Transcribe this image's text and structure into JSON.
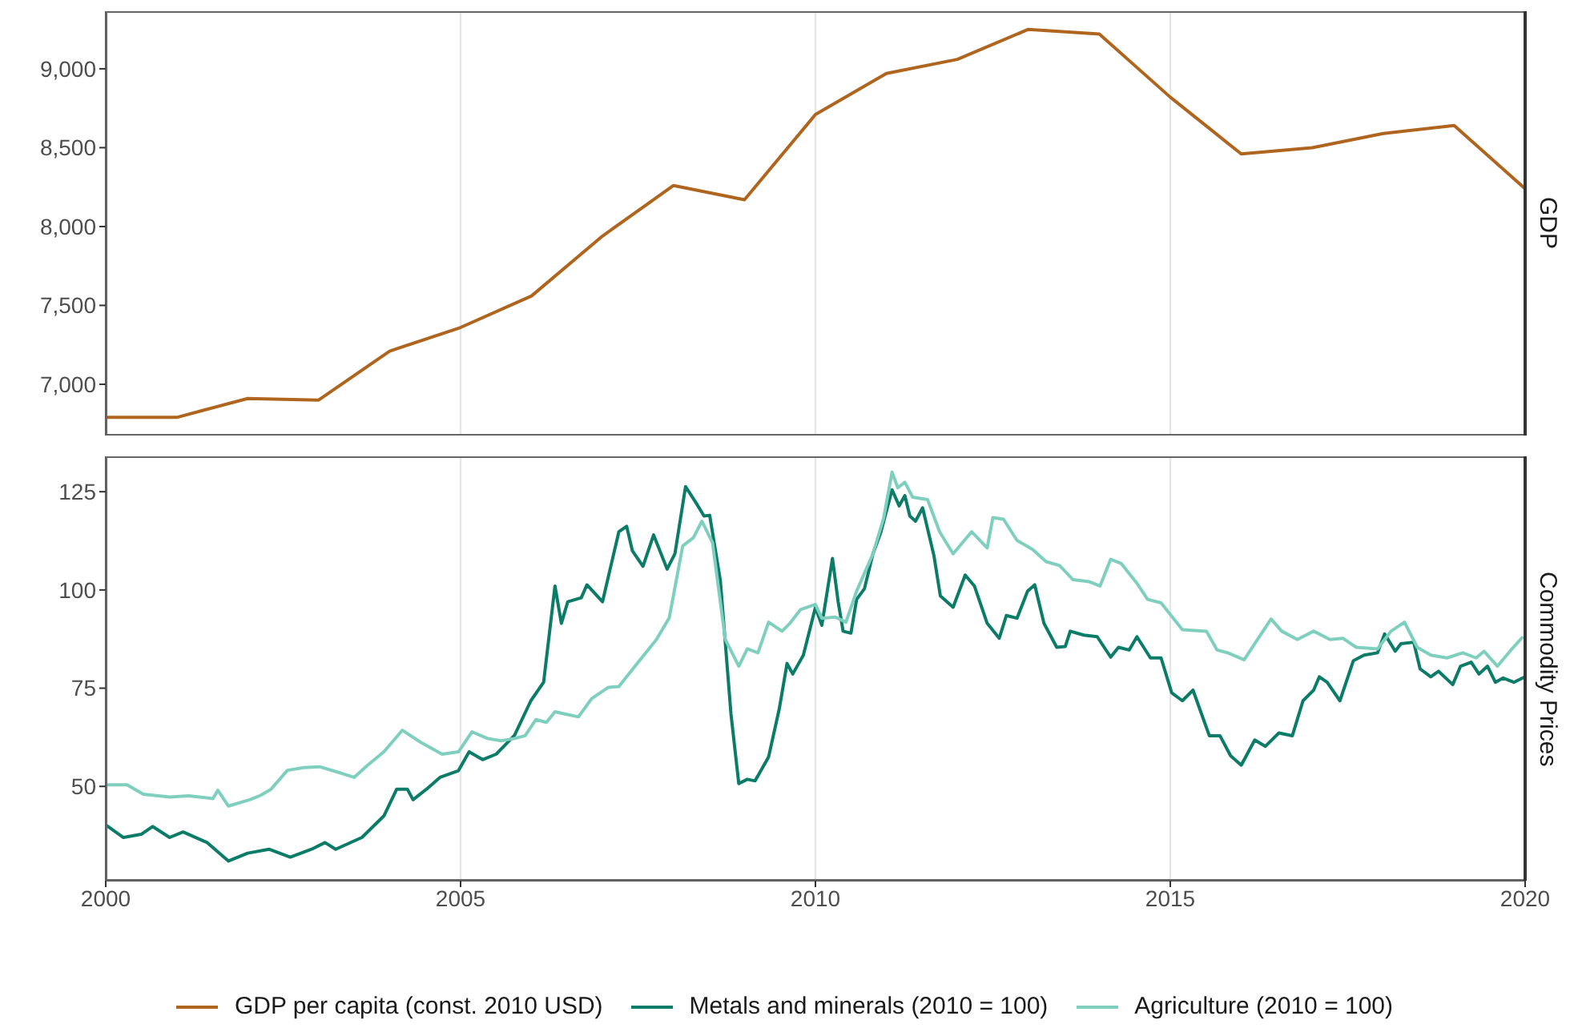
{
  "chart_data": [
    {
      "type": "line",
      "title": "GDP",
      "xlim": [
        2000,
        2020
      ],
      "xticks": [
        2000,
        2005,
        2010,
        2015,
        2020
      ],
      "ylim": [
        6675,
        9365
      ],
      "yticks": [
        {
          "value": 7000,
          "label": "7,000"
        },
        {
          "value": 7500,
          "label": "7,500"
        },
        {
          "value": 8000,
          "label": "8,000"
        },
        {
          "value": 8500,
          "label": "8,500"
        },
        {
          "value": 9000,
          "label": "9,000"
        }
      ],
      "grid": "x",
      "tick_labels": "y",
      "legend": "bottom",
      "series": [
        {
          "name": "GDP per capita (const. 2010 USD)",
          "color": "#b0651f",
          "x": [
            2000,
            2001,
            2002,
            2003,
            2004,
            2005,
            2006,
            2007,
            2008,
            2009,
            2010,
            2011,
            2012,
            2013,
            2014,
            2015,
            2016,
            2017,
            2018,
            2019,
            2020
          ],
          "values": [
            6790,
            6790,
            6910,
            6900,
            7210,
            7360,
            7560,
            7940,
            8260,
            8170,
            8710,
            8970,
            9060,
            9250,
            9220,
            8820,
            8460,
            8500,
            8590,
            8640,
            8240
          ]
        }
      ]
    },
    {
      "type": "line",
      "title": "Commodity Prices",
      "xlim": [
        2000,
        2020
      ],
      "xticks": [
        2000,
        2005,
        2010,
        2015,
        2020
      ],
      "ylim": [
        26,
        134
      ],
      "yticks": [
        50,
        75,
        100,
        125
      ],
      "grid": "x",
      "legend": "bottom",
      "series": [
        {
          "name": "Metals and minerals (2010 = 100)",
          "color": "#0b7c68",
          "x": [
            2000,
            2000.25,
            2000.5,
            2000.66,
            2000.9,
            2001.09,
            2001.43,
            2001.73,
            2002,
            2002.3,
            2002.6,
            2002.9,
            2003.09,
            2003.24,
            2003.61,
            2003.92,
            2004.1,
            2004.25,
            2004.33,
            2004.52,
            2004.71,
            2004.97,
            2005.12,
            2005.31,
            2005.5,
            2005.61,
            2005.76,
            2005.99,
            2006.17,
            2006.33,
            2006.42,
            2006.51,
            2006.7,
            2006.78,
            2007,
            2007.23,
            2007.34,
            2007.42,
            2007.57,
            2007.72,
            2007.91,
            2008.02,
            2008.17,
            2008.32,
            2008.43,
            2008.51,
            2008.66,
            2008.81,
            2008.92,
            2009.04,
            2009.15,
            2009.34,
            2009.49,
            2009.6,
            2009.68,
            2009.83,
            2010,
            2010.09,
            2010.24,
            2010.32,
            2010.39,
            2010.5,
            2010.58,
            2010.69,
            2010.81,
            2010.92,
            2011.08,
            2011.18,
            2011.26,
            2011.33,
            2011.41,
            2011.51,
            2011.67,
            2011.76,
            2011.94,
            2012.11,
            2012.24,
            2012.42,
            2012.59,
            2012.69,
            2012.84,
            2012.99,
            2013.09,
            2013.22,
            2013.4,
            2013.52,
            2013.59,
            2013.78,
            2013.97,
            2014.16,
            2014.27,
            2014.42,
            2014.53,
            2014.72,
            2014.87,
            2015.02,
            2015.17,
            2015.32,
            2015.55,
            2015.7,
            2015.85,
            2016,
            2016.19,
            2016.34,
            2016.53,
            2016.72,
            2016.87,
            2017.02,
            2017.1,
            2017.21,
            2017.39,
            2017.58,
            2017.73,
            2017.92,
            2018.02,
            2018.17,
            2018.25,
            2018.43,
            2018.52,
            2018.67,
            2018.78,
            2018.98,
            2019.09,
            2019.24,
            2019.35,
            2019.47,
            2019.58,
            2019.69,
            2019.84,
            2020
          ],
          "values": [
            40.2,
            37,
            37.8,
            39.8,
            37,
            38.4,
            35.7,
            31,
            33,
            34,
            32,
            34,
            35.7,
            34,
            37,
            42.5,
            49.3,
            49.3,
            46.6,
            49.3,
            52.3,
            54,
            58.8,
            56.8,
            58.2,
            60.2,
            63,
            71.8,
            76.5,
            101,
            91.5,
            97,
            98,
            101.3,
            97,
            114.8,
            116.2,
            110,
            106,
            114,
            105.3,
            109.2,
            126.3,
            122.1,
            118.8,
            119,
            102.4,
            68.4,
            50.7,
            51.8,
            51.4,
            57.5,
            69.7,
            81.3,
            78.6,
            83.4,
            95.6,
            91,
            108,
            97,
            89.5,
            89,
            97.6,
            100.3,
            109.2,
            114.6,
            125.5,
            121.4,
            124,
            118.8,
            117.5,
            120.9,
            108.7,
            98.5,
            95.6,
            103.8,
            101,
            91.5,
            87.7,
            93.5,
            92.8,
            99.7,
            101.3,
            91.5,
            85.4,
            85.6,
            89.5,
            88.5,
            88.1,
            82.9,
            85.4,
            84.7,
            88.1,
            82.7,
            82.7,
            73.8,
            71.8,
            74.5,
            62.9,
            62.9,
            57.8,
            55.4,
            61.8,
            60.2,
            63.6,
            62.9,
            71.8,
            74.5,
            77.9,
            76.5,
            71.8,
            82,
            83.4,
            84,
            88.8,
            84.4,
            86.3,
            86.7,
            79.9,
            77.9,
            79.3,
            75.9,
            80.6,
            81.6,
            78.6,
            80.6,
            76.5,
            77.6,
            76.5,
            77.9
          ]
        },
        {
          "name": "Agriculture (2010 = 100)",
          "color": "#7fcfbf",
          "x": [
            2000,
            2000.3,
            2000.53,
            2000.9,
            2001.17,
            2001.51,
            2001.58,
            2001.73,
            2002.03,
            2002.18,
            2002.33,
            2002.56,
            2002.79,
            2003.01,
            2003.31,
            2003.5,
            2003.69,
            2003.92,
            2004.18,
            2004.44,
            2004.74,
            2004.97,
            2005.16,
            2005.38,
            2005.57,
            2005.76,
            2005.91,
            2006.06,
            2006.21,
            2006.33,
            2006.48,
            2006.66,
            2006.85,
            2007.08,
            2007.23,
            2007.49,
            2007.76,
            2007.94,
            2008.13,
            2008.28,
            2008.4,
            2008.55,
            2008.73,
            2008.92,
            2009.04,
            2009.19,
            2009.34,
            2009.53,
            2009.64,
            2009.79,
            2010,
            2010.09,
            2010.28,
            2010.43,
            2010.58,
            2010.81,
            2010.96,
            2011.08,
            2011.16,
            2011.26,
            2011.37,
            2011.58,
            2011.75,
            2011.94,
            2012.2,
            2012.42,
            2012.5,
            2012.65,
            2012.84,
            2013.06,
            2013.25,
            2013.44,
            2013.63,
            2013.86,
            2014.01,
            2014.16,
            2014.31,
            2014.53,
            2014.68,
            2014.87,
            2015.17,
            2015.51,
            2015.66,
            2015.81,
            2016.04,
            2016.23,
            2016.42,
            2016.57,
            2016.79,
            2017.02,
            2017.25,
            2017.43,
            2017.62,
            2017.92,
            2018.11,
            2018.3,
            2018.48,
            2018.67,
            2018.9,
            2019.12,
            2019.31,
            2019.42,
            2019.61,
            2019.8,
            2019.97
          ],
          "values": [
            50.4,
            50.4,
            48,
            47.3,
            47.6,
            46.9,
            49,
            45,
            46.6,
            47.7,
            49.3,
            54.1,
            54.8,
            55,
            53.4,
            52.3,
            55.4,
            58.8,
            64.3,
            61.2,
            58.2,
            58.8,
            63.9,
            62.2,
            61.6,
            62.2,
            62.9,
            67,
            66.3,
            69,
            68.4,
            67.7,
            72.4,
            75.2,
            75.4,
            81.3,
            87.4,
            92.9,
            111.2,
            113.3,
            117.5,
            112,
            87.4,
            80.6,
            85,
            84,
            91.8,
            89.5,
            91.5,
            95,
            96.3,
            92.8,
            93.1,
            91.8,
            99.7,
            109.2,
            118.2,
            130,
            126,
            127.4,
            123.6,
            123,
            114.8,
            109.2,
            114.8,
            110.7,
            118.4,
            118,
            112.6,
            110.3,
            107.2,
            106.2,
            102.6,
            102.1,
            101,
            107.8,
            106.7,
            101.7,
            97.6,
            96.7,
            89.9,
            89.5,
            84.7,
            84,
            82.2,
            87.4,
            92.6,
            89.5,
            87.4,
            89.5,
            87.4,
            87.7,
            85.4,
            85,
            89.5,
            91.8,
            85.4,
            83.4,
            82.7,
            84,
            82.7,
            84.4,
            80.6,
            84.7,
            88.1
          ]
        }
      ]
    }
  ]
}
